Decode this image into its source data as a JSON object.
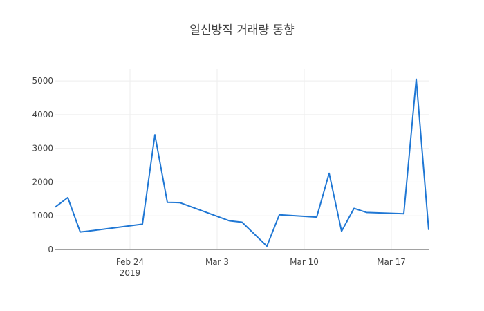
{
  "chart_data": {
    "type": "line",
    "title": "일신방직 거래량 동향",
    "xlabel": "",
    "ylabel": "",
    "x_tick_labels": [
      {
        "date": "2019-02-24",
        "label": "Feb 24",
        "sublabel": "2019"
      },
      {
        "date": "2019-03-03",
        "label": "Mar 3",
        "sublabel": ""
      },
      {
        "date": "2019-03-10",
        "label": "Mar 10",
        "sublabel": ""
      },
      {
        "date": "2019-03-17",
        "label": "Mar 17",
        "sublabel": ""
      }
    ],
    "y_ticks": [
      0,
      1000,
      2000,
      3000,
      4000,
      5000
    ],
    "y_tick_labels": [
      "0",
      "1000",
      "2000",
      "3000",
      "4000",
      "5000"
    ],
    "xlim": [
      "2019-02-18",
      "2019-03-20"
    ],
    "ylim": [
      0,
      5350
    ],
    "grid": true,
    "legend": false,
    "series": [
      {
        "color": "#1f77d4",
        "points": [
          {
            "x": "2019-02-18",
            "y": 1260
          },
          {
            "x": "2019-02-19",
            "y": 1540
          },
          {
            "x": "2019-02-20",
            "y": 520
          },
          {
            "x": "2019-02-21",
            "y": 560
          },
          {
            "x": "2019-02-25",
            "y": 750
          },
          {
            "x": "2019-02-26",
            "y": 3400
          },
          {
            "x": "2019-02-27",
            "y": 1400
          },
          {
            "x": "2019-02-28",
            "y": 1390
          },
          {
            "x": "2019-03-04",
            "y": 850
          },
          {
            "x": "2019-03-05",
            "y": 810
          },
          {
            "x": "2019-03-07",
            "y": 100
          },
          {
            "x": "2019-03-08",
            "y": 1030
          },
          {
            "x": "2019-03-11",
            "y": 960
          },
          {
            "x": "2019-03-12",
            "y": 2260
          },
          {
            "x": "2019-03-13",
            "y": 540
          },
          {
            "x": "2019-03-14",
            "y": 1220
          },
          {
            "x": "2019-03-15",
            "y": 1100
          },
          {
            "x": "2019-03-18",
            "y": 1060
          },
          {
            "x": "2019-03-19",
            "y": 5050
          },
          {
            "x": "2019-03-20",
            "y": 580
          }
        ]
      }
    ]
  }
}
